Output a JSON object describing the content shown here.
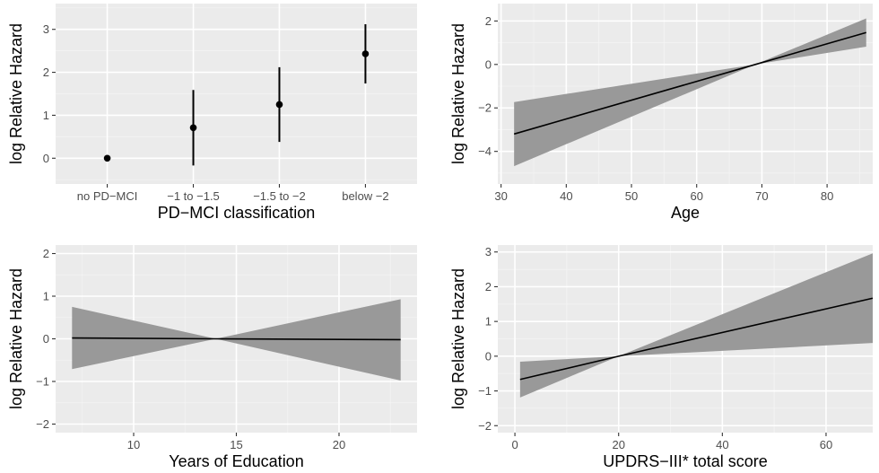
{
  "colors": {
    "panel_background": "#ebebeb",
    "grid_major": "#ffffff",
    "grid_minor": "#f4f4f4",
    "line": "#000000",
    "ribbon": "#999999",
    "tick_text": "#4d4d4d",
    "tick_mark": "#333333"
  },
  "chart_data": [
    {
      "type": "scatter",
      "error_bars": true,
      "xlabel": "PD−MCI classification",
      "ylabel": "log Relative Hazard",
      "categories": [
        "no PD−MCI",
        "−1 to −1.5",
        "−1.5 to −2",
        "below −2"
      ],
      "values": [
        0,
        0.71,
        1.25,
        2.43
      ],
      "lower": [
        0,
        -0.17,
        0.38,
        1.74
      ],
      "upper": [
        0,
        1.59,
        2.12,
        3.12
      ],
      "ylim": [
        -0.6,
        3.6
      ],
      "yticks": [
        0,
        1,
        2,
        3
      ],
      "ytick_labels": [
        "0",
        "1",
        "2",
        "3"
      ],
      "grid": true
    },
    {
      "type": "line",
      "ribbon": true,
      "xlabel": "Age",
      "ylabel": "log Relative Hazard",
      "x": [
        32,
        69,
        86
      ],
      "y": [
        -3.2,
        0,
        1.47
      ],
      "lower": [
        -4.68,
        0,
        0.82
      ],
      "upper": [
        -1.73,
        0,
        2.12
      ],
      "xlim": [
        29.5,
        87
      ],
      "ylim": [
        -5.5,
        2.8
      ],
      "xticks": [
        30,
        40,
        50,
        60,
        70,
        80
      ],
      "xtick_labels": [
        "30",
        "40",
        "50",
        "60",
        "70",
        "80"
      ],
      "yticks": [
        -4,
        -2,
        0,
        2
      ],
      "ytick_labels": [
        "−4",
        "−2",
        "0",
        "2"
      ],
      "grid": true
    },
    {
      "type": "line",
      "ribbon": true,
      "xlabel": "Years of Education",
      "ylabel": "log Relative Hazard",
      "x": [
        7,
        14,
        23
      ],
      "y": [
        0.02,
        0,
        -0.02
      ],
      "lower": [
        -0.71,
        0,
        -0.98
      ],
      "upper": [
        0.75,
        0,
        0.93
      ],
      "xlim": [
        6.2,
        23.8
      ],
      "ylim": [
        -2.2,
        2.2
      ],
      "xticks": [
        10,
        15,
        20
      ],
      "xtick_labels": [
        "10",
        "15",
        "20"
      ],
      "yticks": [
        -2,
        -1,
        0,
        1,
        2
      ],
      "ytick_labels": [
        "−2",
        "−1",
        "0",
        "1",
        "2"
      ],
      "grid": true
    },
    {
      "type": "line",
      "ribbon": true,
      "xlabel": "UPDRS−III* total score",
      "ylabel": "log Relative Hazard",
      "x": [
        1,
        20,
        69
      ],
      "y": [
        -0.67,
        0,
        1.67
      ],
      "lower": [
        -1.19,
        0,
        0.38
      ],
      "upper": [
        -0.16,
        0,
        2.96
      ],
      "xlim": [
        -3.3,
        69
      ],
      "ylim": [
        -2.2,
        3.2
      ],
      "xticks": [
        0,
        20,
        40,
        60
      ],
      "xtick_labels": [
        "0",
        "20",
        "40",
        "60"
      ],
      "yticks": [
        -2,
        -1,
        0,
        1,
        2,
        3
      ],
      "ytick_labels": [
        "−2",
        "−1",
        "0",
        "1",
        "2",
        "3"
      ],
      "grid": true
    }
  ]
}
